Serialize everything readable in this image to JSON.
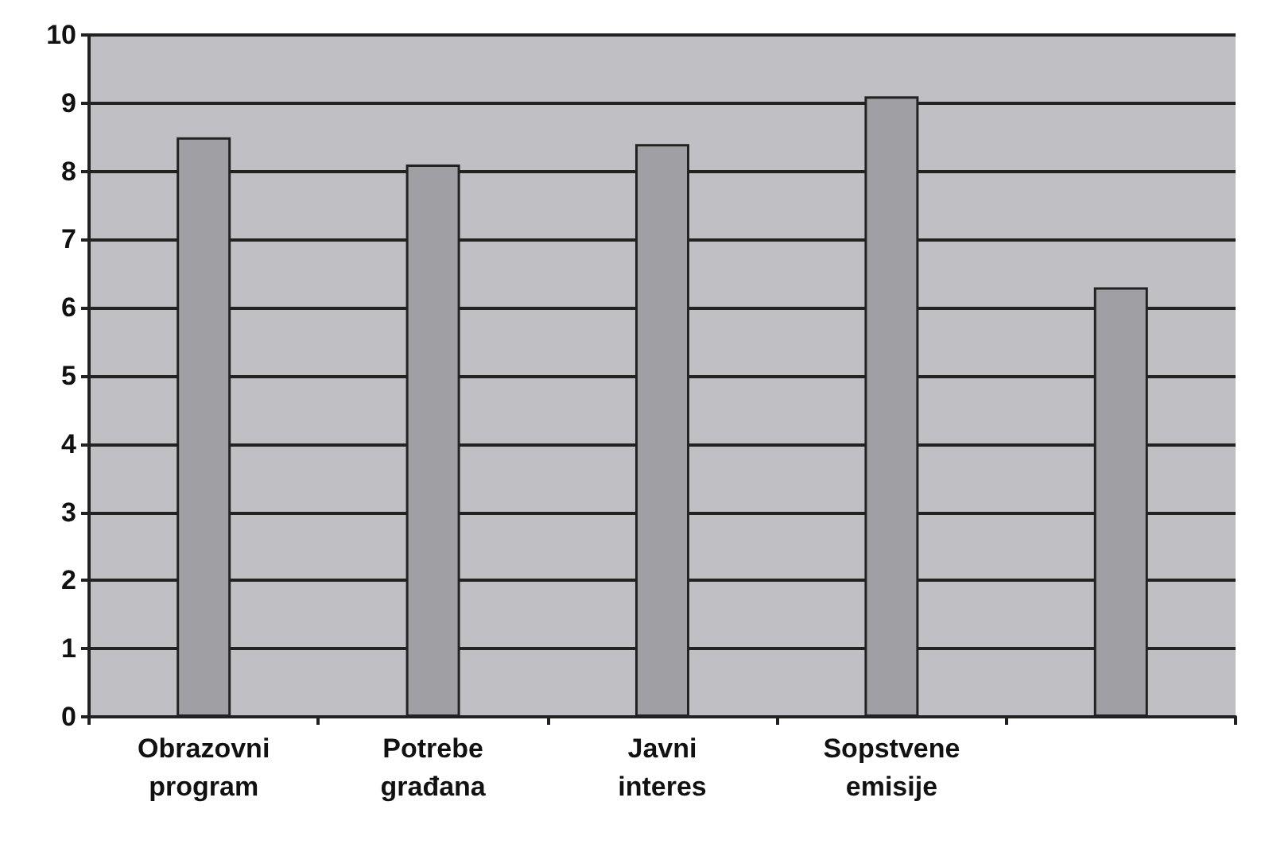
{
  "chart_data": {
    "type": "bar",
    "categories": [
      "Obrazovni program",
      "Potrebe građana",
      "Javni interes",
      "Sopstvene emisije",
      null
    ],
    "values": [
      8.5,
      8.1,
      8.4,
      9.1,
      6.3
    ],
    "color": "#a0a0a4",
    "ylim": [
      0,
      10
    ],
    "yticks": [
      0,
      1,
      2,
      3,
      4,
      5,
      6,
      7,
      8,
      9,
      10
    ],
    "grid": "y"
  }
}
